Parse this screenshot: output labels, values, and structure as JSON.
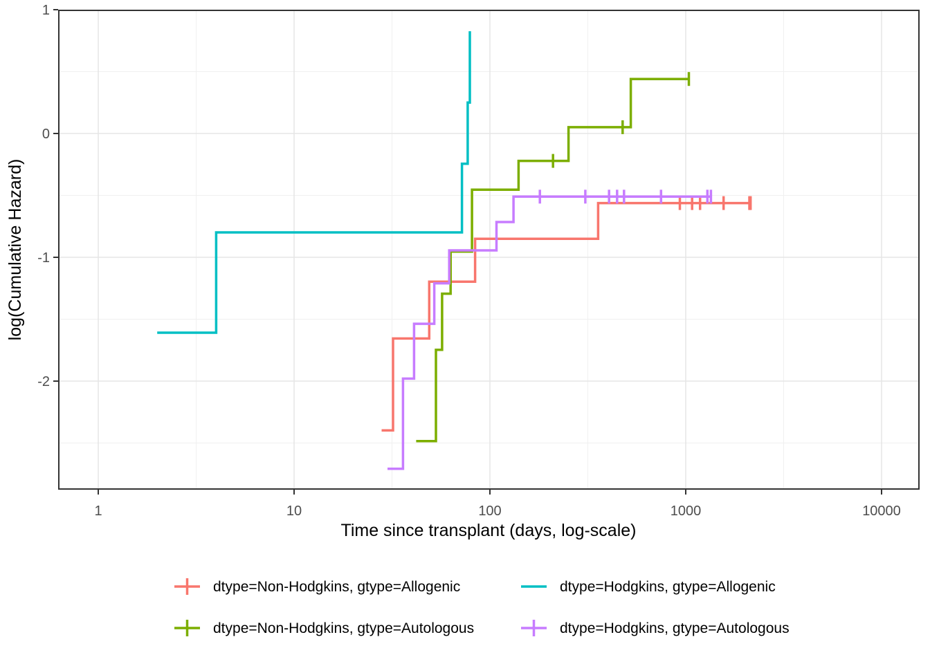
{
  "figure": {
    "kind": "survival-cumulative-hazard-plot",
    "x_title": "Time since transplant (days, log-scale)",
    "y_title": "log(Cumulative Hazard)"
  },
  "chart_data": {
    "type": "line",
    "subtype": "step-function-nelson-aalen-log-cumulative-hazard",
    "title": "",
    "xlabel": "Time since transplant (days, log-scale)",
    "ylabel": "log(Cumulative Hazard)",
    "x_scale": "log10",
    "y_scale": "linear",
    "x_ticks": [
      1,
      10,
      100,
      1000,
      10000
    ],
    "x_minor_ticks": [
      3.1623,
      31.623,
      316.23,
      3162.3
    ],
    "y_ticks": [
      1,
      0,
      -1,
      -2
    ],
    "y_minor_ticks": [
      0.5,
      -0.5,
      -1.5,
      -2.5
    ],
    "xlim_log10": [
      -0.2,
      4.19
    ],
    "ylim": [
      -2.87,
      1.0
    ],
    "grid": true,
    "legend_position": "bottom",
    "panel_border_color": "#333333",
    "grid_major_color": "#e5e5e5",
    "grid_minor_color": "#f0f0f0",
    "series": [
      {
        "label": "dtype=Non-Hodgkins, gtype=Allogenic",
        "color": "#F8766D",
        "steps": [
          [
            28,
            -2.398
          ],
          [
            32,
            -1.656
          ],
          [
            49,
            -1.197
          ],
          [
            84,
            -0.851
          ],
          [
            357,
            -0.562
          ]
        ],
        "end_time": 2144,
        "censored": [
          [
            933,
            -0.562
          ],
          [
            1078,
            -0.562
          ],
          [
            1183,
            -0.562
          ],
          [
            1560,
            -0.562
          ],
          [
            2114,
            -0.562
          ],
          [
            2144,
            -0.562
          ]
        ]
      },
      {
        "label": "dtype=Non-Hodgkins, gtype=Autologous",
        "color": "#7CAE00",
        "steps": [
          [
            42,
            -2.485
          ],
          [
            53,
            -1.747
          ],
          [
            57,
            -1.294
          ],
          [
            63,
            -0.954
          ],
          [
            81,
            -0.454
          ],
          [
            140,
            -0.221
          ],
          [
            252,
            0.051
          ],
          [
            524,
            0.44
          ]
        ],
        "end_time": 1037,
        "censored": [
          [
            210,
            -0.221
          ],
          [
            476,
            0.051
          ],
          [
            1037,
            0.44
          ]
        ]
      },
      {
        "label": "dtype=Hodgkins, gtype=Allogenic",
        "color": "#00BFC4",
        "steps": [
          [
            2,
            -1.609
          ],
          [
            4,
            -0.799
          ],
          [
            72,
            -0.244
          ],
          [
            77,
            0.25
          ],
          [
            79,
            0.826
          ]
        ],
        "end_time": 79,
        "censored": []
      },
      {
        "label": "dtype=Hodgkins, gtype=Autologous",
        "color": "#C77CFF",
        "steps": [
          [
            30,
            -2.708
          ],
          [
            36,
            -1.98
          ],
          [
            41,
            -1.537
          ],
          [
            52,
            -1.21
          ],
          [
            62,
            -0.944
          ],
          [
            108,
            -0.715
          ],
          [
            132,
            -0.51
          ]
        ],
        "end_time": 1345,
        "censored": [
          [
            180,
            -0.51
          ],
          [
            307,
            -0.51
          ],
          [
            406,
            -0.51
          ],
          [
            446,
            -0.51
          ],
          [
            484,
            -0.51
          ],
          [
            748,
            -0.51
          ],
          [
            1290,
            -0.51
          ],
          [
            1345,
            -0.51
          ]
        ]
      }
    ]
  }
}
